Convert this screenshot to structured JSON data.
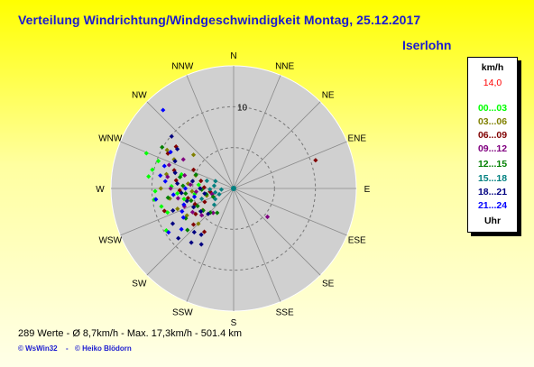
{
  "page": {
    "title": "Verteilung Windrichtung/Windgeschwindigkeit  Montag, 25.12.2017",
    "station": "Iserlohn",
    "footer": "289 Werte   -   Ø 8,7km/h   -   Max. 17,3km/h   -   501.4 km",
    "copyright": [
      "© WsWin32",
      "-",
      "© Heiko Blödorn"
    ]
  },
  "chart_data": {
    "type": "scatter",
    "subtype": "polar",
    "radius_rings": [
      5,
      10,
      15
    ],
    "ring_label": "10",
    "radius_max": 15,
    "directions": [
      "N",
      "NNE",
      "NE",
      "ENE",
      "E",
      "ESE",
      "SE",
      "SSE",
      "S",
      "SSW",
      "SW",
      "WSW",
      "W",
      "WNW",
      "NW",
      "NNW"
    ],
    "legend": {
      "unit": "km/h",
      "max_value": "14,0",
      "footer": "Uhr",
      "entries": [
        {
          "label": "00...03",
          "color": "#00ff00"
        },
        {
          "label": "03...06",
          "color": "#808000"
        },
        {
          "label": "06...09",
          "color": "#800000"
        },
        {
          "label": "09...12",
          "color": "#800080"
        },
        {
          "label": "12...15",
          "color": "#008000"
        },
        {
          "label": "15...18",
          "color": "#008080"
        },
        {
          "label": "18...21",
          "color": "#000080"
        },
        {
          "label": "21...24",
          "color": "#0000ff"
        }
      ]
    },
    "points": [
      {
        "dir": 292,
        "v": 11.5,
        "c": 0
      },
      {
        "dir": 290,
        "v": 9.8,
        "c": 0
      },
      {
        "dir": 283,
        "v": 10.2,
        "c": 0
      },
      {
        "dir": 278,
        "v": 10.5,
        "c": 0
      },
      {
        "dir": 268,
        "v": 9.6,
        "c": 0
      },
      {
        "dir": 262,
        "v": 9.8,
        "c": 0
      },
      {
        "dir": 256,
        "v": 9.1,
        "c": 0
      },
      {
        "dir": 250,
        "v": 8.6,
        "c": 0
      },
      {
        "dir": 272,
        "v": 7.6,
        "c": 0
      },
      {
        "dir": 265,
        "v": 6.9,
        "c": 0
      },
      {
        "dir": 258,
        "v": 6.2,
        "c": 0
      },
      {
        "dir": 285,
        "v": 6.6,
        "c": 0
      },
      {
        "dir": 276,
        "v": 4.3,
        "c": 0
      },
      {
        "dir": 262,
        "v": 4.8,
        "c": 0
      },
      {
        "dir": 245,
        "v": 5.4,
        "c": 0
      },
      {
        "dir": 238,
        "v": 9.7,
        "c": 0
      },
      {
        "dir": 300,
        "v": 9.4,
        "c": 1
      },
      {
        "dir": 296,
        "v": 8.1,
        "c": 1
      },
      {
        "dir": 282,
        "v": 8.4,
        "c": 1
      },
      {
        "dir": 270,
        "v": 8.9,
        "c": 1
      },
      {
        "dir": 261,
        "v": 7.9,
        "c": 1
      },
      {
        "dir": 250,
        "v": 7.3,
        "c": 1
      },
      {
        "dir": 240,
        "v": 6.6,
        "c": 1
      },
      {
        "dir": 276,
        "v": 5.6,
        "c": 1
      },
      {
        "dir": 266,
        "v": 5.1,
        "c": 1
      },
      {
        "dir": 235,
        "v": 4.6,
        "c": 1
      },
      {
        "dir": 225,
        "v": 6.1,
        "c": 1
      },
      {
        "dir": 289,
        "v": 4.9,
        "c": 1
      },
      {
        "dir": 255,
        "v": 3.4,
        "c": 1
      },
      {
        "dir": 310,
        "v": 6.4,
        "c": 1
      },
      {
        "dir": 306,
        "v": 8.7,
        "c": 2
      },
      {
        "dir": 298,
        "v": 9.1,
        "c": 2
      },
      {
        "dir": 287,
        "v": 7.6,
        "c": 2
      },
      {
        "dir": 278,
        "v": 7.1,
        "c": 2
      },
      {
        "dir": 268,
        "v": 6.6,
        "c": 2
      },
      {
        "dir": 258,
        "v": 5.7,
        "c": 2
      },
      {
        "dir": 248,
        "v": 5.1,
        "c": 2
      },
      {
        "dir": 236,
        "v": 5.6,
        "c": 2
      },
      {
        "dir": 228,
        "v": 6.6,
        "c": 2
      },
      {
        "dir": 272,
        "v": 3.6,
        "c": 2
      },
      {
        "dir": 262,
        "v": 2.9,
        "c": 2
      },
      {
        "dir": 283,
        "v": 4.1,
        "c": 2
      },
      {
        "dir": 295,
        "v": 5.4,
        "c": 2
      },
      {
        "dir": 245,
        "v": 3.9,
        "c": 2
      },
      {
        "dir": 214,
        "v": 6.4,
        "c": 2
      },
      {
        "dir": 252,
        "v": 8.9,
        "c": 2
      },
      {
        "dir": 71,
        "v": 10.6,
        "c": 2
      },
      {
        "dir": 290,
        "v": 8.4,
        "c": 3
      },
      {
        "dir": 280,
        "v": 8.2,
        "c": 3
      },
      {
        "dir": 270,
        "v": 7.7,
        "c": 3
      },
      {
        "dir": 260,
        "v": 6.9,
        "c": 3
      },
      {
        "dir": 250,
        "v": 6.4,
        "c": 3
      },
      {
        "dir": 240,
        "v": 5.8,
        "c": 3
      },
      {
        "dir": 230,
        "v": 5.1,
        "c": 3
      },
      {
        "dir": 275,
        "v": 5.3,
        "c": 3
      },
      {
        "dir": 265,
        "v": 4.6,
        "c": 3
      },
      {
        "dir": 285,
        "v": 6.2,
        "c": 3
      },
      {
        "dir": 300,
        "v": 7.1,
        "c": 3
      },
      {
        "dir": 255,
        "v": 2.7,
        "c": 3
      },
      {
        "dir": 130,
        "v": 5.4,
        "c": 3
      },
      {
        "dir": 220,
        "v": 3.9,
        "c": 3
      },
      {
        "dir": 282,
        "v": 6.7,
        "c": 4
      },
      {
        "dir": 273,
        "v": 6.2,
        "c": 4
      },
      {
        "dir": 264,
        "v": 5.9,
        "c": 4
      },
      {
        "dir": 254,
        "v": 5.4,
        "c": 4
      },
      {
        "dir": 244,
        "v": 4.9,
        "c": 4
      },
      {
        "dir": 234,
        "v": 4.6,
        "c": 4
      },
      {
        "dir": 224,
        "v": 4.1,
        "c": 4
      },
      {
        "dir": 214,
        "v": 3.6,
        "c": 4
      },
      {
        "dir": 268,
        "v": 3.9,
        "c": 4
      },
      {
        "dir": 258,
        "v": 3.4,
        "c": 4
      },
      {
        "dir": 290,
        "v": 4.9,
        "c": 4
      },
      {
        "dir": 248,
        "v": 2.7,
        "c": 4
      },
      {
        "dir": 238,
        "v": 6.9,
        "c": 4
      },
      {
        "dir": 228,
        "v": 7.6,
        "c": 4
      },
      {
        "dir": 262,
        "v": 8.1,
        "c": 4
      },
      {
        "dir": 300,
        "v": 10.1,
        "c": 4
      },
      {
        "dir": 278,
        "v": 2.4,
        "c": 5
      },
      {
        "dir": 268,
        "v": 2.9,
        "c": 5
      },
      {
        "dir": 258,
        "v": 2.3,
        "c": 5
      },
      {
        "dir": 248,
        "v": 1.9,
        "c": 5
      },
      {
        "dir": 286,
        "v": 3.4,
        "c": 5
      },
      {
        "dir": 240,
        "v": 2.6,
        "c": 5
      },
      {
        "dir": 230,
        "v": 3.1,
        "c": 5
      },
      {
        "dir": 265,
        "v": 1.5,
        "c": 5
      },
      {
        "dir": 292,
        "v": 2.4,
        "c": 5
      },
      {
        "dir": 252,
        "v": 4.1,
        "c": 5
      },
      {
        "dir": 295,
        "v": 7.9,
        "c": 6
      },
      {
        "dir": 285,
        "v": 7.4,
        "c": 6
      },
      {
        "dir": 275,
        "v": 6.9,
        "c": 6
      },
      {
        "dir": 265,
        "v": 6.4,
        "c": 6
      },
      {
        "dir": 255,
        "v": 5.9,
        "c": 6
      },
      {
        "dir": 245,
        "v": 5.4,
        "c": 6
      },
      {
        "dir": 235,
        "v": 4.9,
        "c": 6
      },
      {
        "dir": 225,
        "v": 4.4,
        "c": 6
      },
      {
        "dir": 215,
        "v": 6.9,
        "c": 6
      },
      {
        "dir": 210,
        "v": 7.9,
        "c": 6
      },
      {
        "dir": 218,
        "v": 8.4,
        "c": 6
      },
      {
        "dir": 270,
        "v": 4.1,
        "c": 6
      },
      {
        "dir": 260,
        "v": 3.6,
        "c": 6
      },
      {
        "dir": 280,
        "v": 5.1,
        "c": 6
      },
      {
        "dir": 310,
        "v": 9.9,
        "c": 6
      },
      {
        "dir": 305,
        "v": 8.4,
        "c": 6
      },
      {
        "dir": 250,
        "v": 7.9,
        "c": 6
      },
      {
        "dir": 240,
        "v": 8.6,
        "c": 6
      },
      {
        "dir": 228,
        "v": 9.1,
        "c": 6
      },
      {
        "dir": 222,
        "v": 7.2,
        "c": 6
      },
      {
        "dir": 318,
        "v": 12.9,
        "c": 7
      },
      {
        "dir": 300,
        "v": 8.9,
        "c": 7
      },
      {
        "dir": 288,
        "v": 8.9,
        "c": 7
      },
      {
        "dir": 276,
        "v": 8.4,
        "c": 7
      },
      {
        "dir": 264,
        "v": 7.4,
        "c": 7
      },
      {
        "dir": 252,
        "v": 6.4,
        "c": 7
      },
      {
        "dir": 240,
        "v": 7.1,
        "c": 7
      },
      {
        "dir": 232,
        "v": 8.1,
        "c": 7
      },
      {
        "dir": 270,
        "v": 5.9,
        "c": 7
      },
      {
        "dir": 258,
        "v": 4.9,
        "c": 7
      },
      {
        "dir": 246,
        "v": 6.9,
        "c": 7
      },
      {
        "dir": 236,
        "v": 9.6,
        "c": 7
      },
      {
        "dir": 262,
        "v": 9.6,
        "c": 7
      },
      {
        "dir": 280,
        "v": 9.1,
        "c": 7
      }
    ]
  }
}
